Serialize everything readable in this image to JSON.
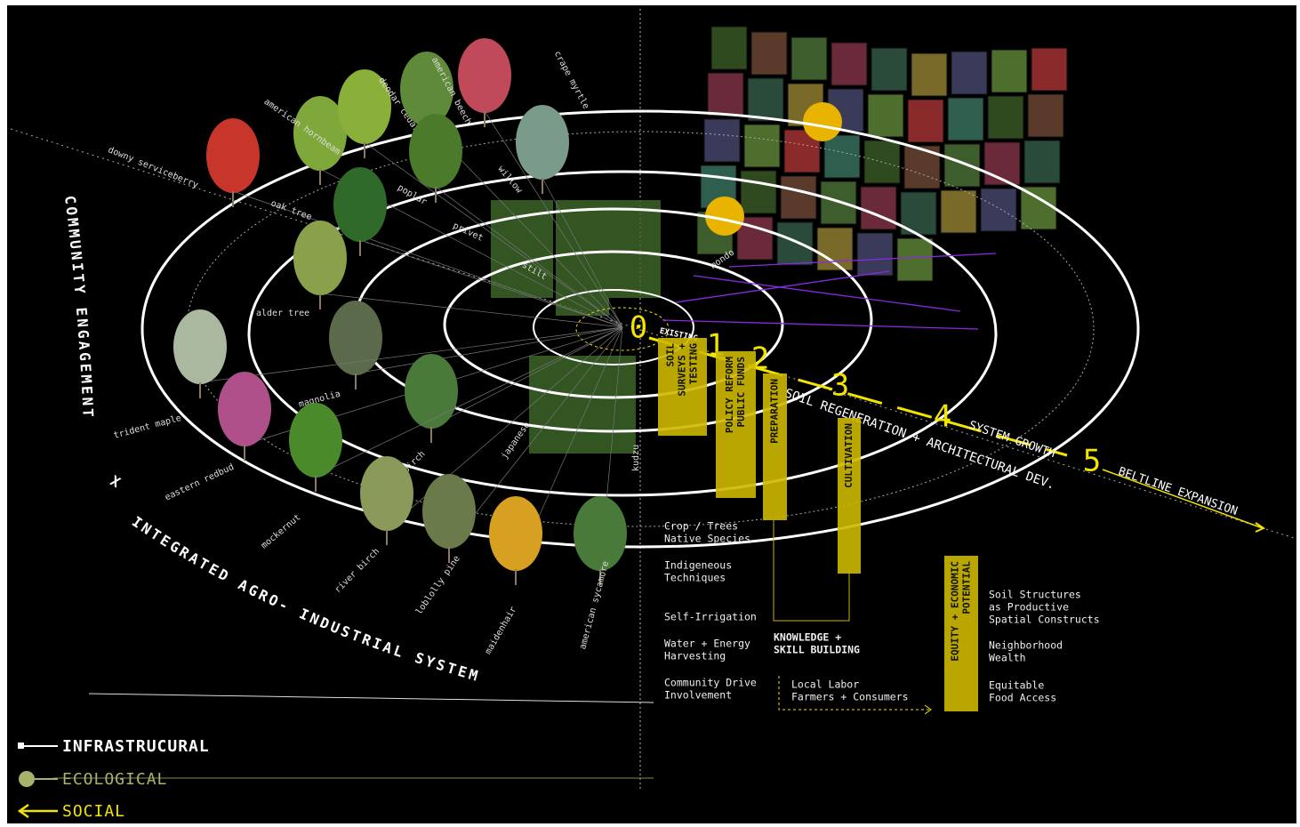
{
  "tree_labels": [
    "downy serviceberry",
    "american hornbeam",
    "deodar cedar",
    "american beech",
    "crape myrtle",
    "willow",
    "oak tree",
    "poplar",
    "privet",
    "stilt",
    "mondo",
    "alder tree",
    "magnolia",
    "trident maple",
    "eastern redbud",
    "birch",
    "japanese",
    "kudzu",
    "mockernut",
    "river birch",
    "loblolly pine",
    "maidenhair",
    "american sycamore"
  ],
  "axis_titles": {
    "left": "COMMUNITY ENGAGEMENT",
    "cross": "X",
    "bottom": "INTEGRATED AGRO- INDUSTRIAL SYSTEM"
  },
  "stages": {
    "numbers": [
      "0",
      "1",
      "2",
      "3",
      "4",
      "5"
    ],
    "existing": "EXISTING",
    "phases": [
      "SOIL REGENERATION + ARCHITECTURAL DEV.",
      "SYSTEM GROWTH",
      "BELTLINE EXPANSION"
    ]
  },
  "bars": [
    {
      "lines": [
        "SOIL",
        "SURVEYS +",
        "TESTING"
      ]
    },
    {
      "lines": [
        "POLICY REFORM",
        "PUBLIC FUNDS"
      ]
    },
    {
      "lines": [
        "PREPARATION"
      ]
    },
    {
      "lines": [
        "CULTIVATION"
      ]
    },
    {
      "lines": [
        "EQUITY + ECONOMIC",
        "POTENTIAL"
      ]
    }
  ],
  "notes": [
    {
      "lines": [
        "Crop / Trees",
        "Native Species"
      ]
    },
    {
      "lines": [
        "Indigeneous",
        "Techniques"
      ]
    },
    {
      "lines": [
        "Self-Irrigation"
      ]
    },
    {
      "lines": [
        "Water + Energy",
        "Harvesting"
      ]
    },
    {
      "lines": [
        "Community Drive",
        "Involvement"
      ]
    },
    {
      "lines": [
        "KNOWLEDGE +",
        "SKILL BUILDING"
      ]
    },
    {
      "lines": [
        "Local Labor",
        "Farmers + Consumers"
      ]
    },
    {
      "lines": [
        "Soil Structures",
        "as Productive",
        "Spatial Constructs"
      ]
    },
    {
      "lines": [
        "Neighborhood",
        "Wealth"
      ]
    },
    {
      "lines": [
        "Equitable",
        "Food Access"
      ]
    }
  ],
  "legend": [
    "INFRASTRUCURAL",
    "ECOLOGICAL",
    "SOCIAL"
  ]
}
